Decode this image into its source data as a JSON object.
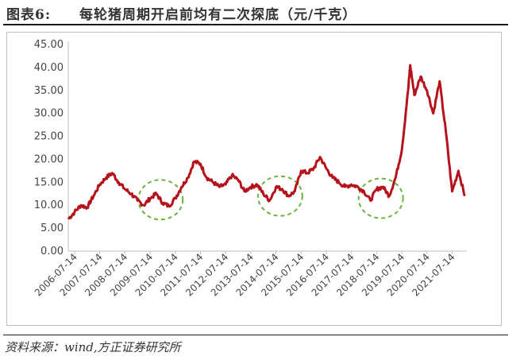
{
  "header": {
    "figure_label": "图表6:",
    "title": "每轮猪周期开启前均有二次探底（元/千克）"
  },
  "footer": {
    "source": "资料来源：wind,方正证券研究所"
  },
  "colors": {
    "line": "#b5121b",
    "highlight_circle": "#6db33f",
    "axis": "#bfbfbf"
  },
  "chart_data": {
    "type": "line",
    "title": "每轮猪周期开启前均有二次探底（元/千克）",
    "xlabel": "",
    "ylabel": "",
    "ylim": [
      0,
      45
    ],
    "y_ticks": [
      "0.00",
      "5.00",
      "10.00",
      "15.00",
      "20.00",
      "25.00",
      "30.00",
      "35.00",
      "40.00",
      "45.00"
    ],
    "x_ticks": [
      "2006-07-14",
      "2007-07-14",
      "2008-07-14",
      "2009-07-14",
      "2010-07-14",
      "2011-07-14",
      "2012-07-14",
      "2013-07-14",
      "2014-07-14",
      "2015-07-14",
      "2016-07-14",
      "2017-07-14",
      "2018-07-14",
      "2019-07-14",
      "2020-07-14",
      "2021-07-14"
    ],
    "grid": false,
    "legend": "none",
    "series": [
      {
        "x": [
          "2006-04",
          "2006-07",
          "2006-10",
          "2007-01",
          "2007-04",
          "2007-07",
          "2007-10",
          "2008-01",
          "2008-04",
          "2008-07",
          "2008-10",
          "2009-01",
          "2009-04",
          "2009-07",
          "2009-10",
          "2010-01",
          "2010-04",
          "2010-07",
          "2010-10",
          "2011-01",
          "2011-04",
          "2011-07",
          "2011-10",
          "2012-01",
          "2012-04",
          "2012-07",
          "2012-10",
          "2013-01",
          "2013-04",
          "2013-07",
          "2013-10",
          "2014-01",
          "2014-04",
          "2014-07",
          "2014-10",
          "2015-01",
          "2015-04",
          "2015-07",
          "2015-10",
          "2016-01",
          "2016-04",
          "2016-07",
          "2016-10",
          "2017-01",
          "2017-04",
          "2017-07",
          "2017-10",
          "2018-01",
          "2018-04",
          "2018-07",
          "2018-10",
          "2019-01",
          "2019-04",
          "2019-07",
          "2019-10",
          "2019-11",
          "2020-01",
          "2020-04",
          "2020-07",
          "2020-10",
          "2021-01",
          "2021-04",
          "2021-07",
          "2021-10",
          "2022-01"
        ],
        "values": [
          7.0,
          8.5,
          10.0,
          9.5,
          12.0,
          14.5,
          16.0,
          17.0,
          15.0,
          13.5,
          12.5,
          11.0,
          10.0,
          11.5,
          12.5,
          10.5,
          9.8,
          11.5,
          14.0,
          16.0,
          19.5,
          19.0,
          16.0,
          15.0,
          14.0,
          14.5,
          16.5,
          15.5,
          13.0,
          14.0,
          14.5,
          12.5,
          11.0,
          14.0,
          13.5,
          12.0,
          13.0,
          17.5,
          17.0,
          18.0,
          20.5,
          18.0,
          16.0,
          15.0,
          14.0,
          14.5,
          14.0,
          13.0,
          11.0,
          13.5,
          14.0,
          12.0,
          16.0,
          22.0,
          35.0,
          40.5,
          34.0,
          38.0,
          35.0,
          30.0,
          37.0,
          26.0,
          13.0,
          17.5,
          12.0
        ]
      }
    ],
    "annotations": [
      {
        "label": "second-bottom-2009",
        "center_x": "2009-12",
        "center_y": 11.2
      },
      {
        "label": "second-bottom-2014",
        "center_x": "2014-09",
        "center_y": 12.0
      },
      {
        "label": "second-bottom-2018",
        "center_x": "2018-09",
        "center_y": 11.5
      }
    ]
  }
}
